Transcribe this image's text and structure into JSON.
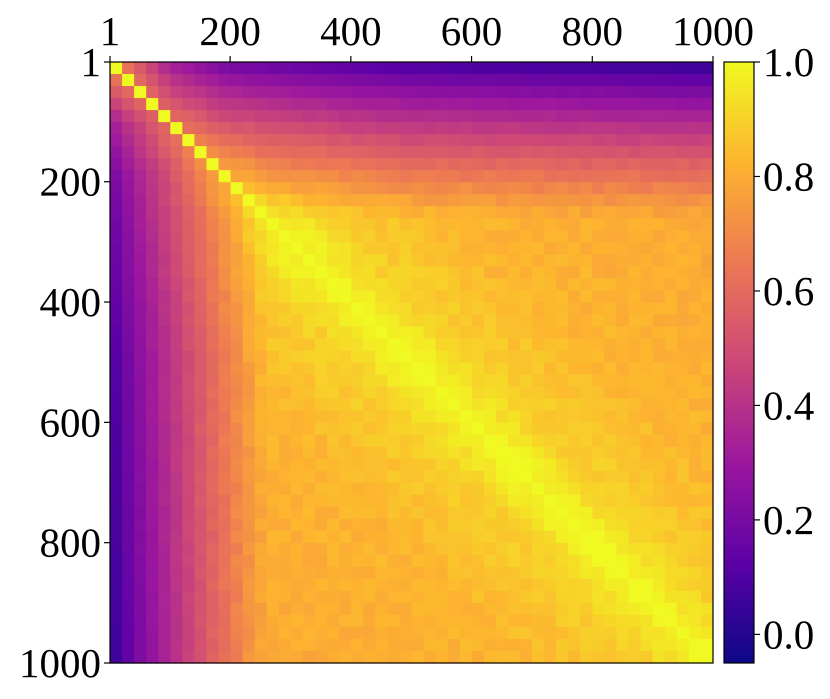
{
  "chart_data": {
    "type": "heatmap",
    "title": "",
    "xlabel": "",
    "ylabel": "",
    "x_axis_position": "top",
    "y_axis_inverted": true,
    "xlim": [
      1,
      1000
    ],
    "ylim": [
      1,
      1000
    ],
    "grid_size": 50,
    "x_ticks": [
      {
        "value": 1,
        "label": "1"
      },
      {
        "value": 200,
        "label": "200"
      },
      {
        "value": 400,
        "label": "400"
      },
      {
        "value": 600,
        "label": "600"
      },
      {
        "value": 800,
        "label": "800"
      },
      {
        "value": 1000,
        "label": "1000"
      }
    ],
    "y_ticks": [
      {
        "value": 1,
        "label": "1"
      },
      {
        "value": 200,
        "label": "200"
      },
      {
        "value": 400,
        "label": "400"
      },
      {
        "value": 600,
        "label": "600"
      },
      {
        "value": 800,
        "label": "800"
      },
      {
        "value": 1000,
        "label": "1000"
      }
    ],
    "colormap": "plasma",
    "colormap_stops": [
      "#0d0887",
      "#5c01a6",
      "#9c179e",
      "#cc4778",
      "#ed7953",
      "#fdb42f",
      "#f0f921"
    ],
    "color_range": [
      -0.05,
      1.0
    ],
    "colorbar_ticks": [
      {
        "value": 1.0,
        "label": "1.0"
      },
      {
        "value": 0.8,
        "label": "0.8"
      },
      {
        "value": 0.6,
        "label": "0.6"
      },
      {
        "value": 0.4,
        "label": "0.4"
      },
      {
        "value": 0.2,
        "label": "0.2"
      },
      {
        "value": 0.0,
        "label": "0.0"
      }
    ],
    "diagonal_value": 1.0,
    "similarity_by_distance": [
      {
        "distance": 1,
        "value": 1.0
      },
      {
        "distance": 100,
        "value": 0.9
      },
      {
        "distance": 300,
        "value": 0.83
      },
      {
        "distance": 600,
        "value": 0.8
      },
      {
        "distance": 999,
        "value": 0.78
      }
    ],
    "first_token_similarity_by_other_index": [
      {
        "index": 1,
        "value": 1.0
      },
      {
        "index": 30,
        "value": 0.6
      },
      {
        "index": 100,
        "value": 0.3
      },
      {
        "index": 200,
        "value": 0.15
      },
      {
        "index": 500,
        "value": 0.05
      },
      {
        "index": 1000,
        "value": 0.0
      }
    ]
  }
}
